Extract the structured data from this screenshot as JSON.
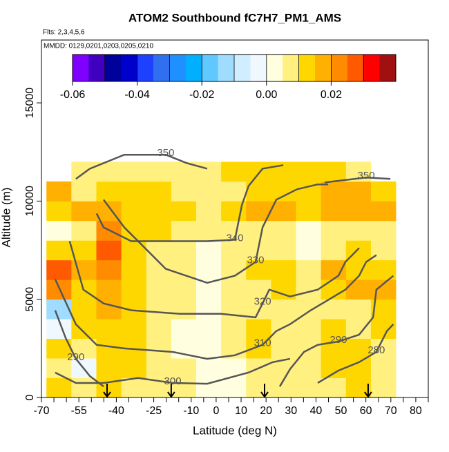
{
  "chart_data": {
    "type": "heatmap",
    "title": "ATOM2 Southbound fC7H7_PM1_AMS",
    "subtitle": "Flts: 2,3,4,5,6",
    "annotation": "MMDD: 0129,0201,0203,0205,0210",
    "xlabel": "Latitude (deg N)",
    "ylabel": "Altitude (m)",
    "xlim": [
      -70,
      85
    ],
    "ylim": [
      0,
      18200
    ],
    "xticks": [
      -70,
      -55,
      -40,
      -25,
      -10,
      0,
      10,
      20,
      30,
      40,
      50,
      60,
      70,
      80
    ],
    "xminorticks": [
      -65,
      -60,
      -50,
      -45,
      -35,
      -30,
      -20,
      -15,
      -5,
      5,
      15,
      25,
      35,
      45,
      55,
      65,
      75,
      85
    ],
    "yticks": [
      0,
      5000,
      10000,
      15000
    ],
    "colorbar": {
      "lim": [
        -0.06,
        0.04
      ],
      "ticks": [
        -0.06,
        -0.04,
        -0.02,
        {
          "value": 0,
          "label": "0.00"
        },
        0.02
      ],
      "colors": [
        "#7f00ff",
        "#4000c0",
        "#00009a",
        "#0000cd",
        "#1e40ff",
        "#3070f0",
        "#1e90ff",
        "#00b0ff",
        "#60c8ff",
        "#a0dcff",
        "#d0eeff",
        "#f0f8ff",
        "#ffffe0",
        "#fff080",
        "#ffd700",
        "#ffb000",
        "#ff8c00",
        "#ff5a00",
        "#ff0000",
        "#a01010"
      ]
    },
    "heatmap": {
      "x_edges": [
        -68,
        -58,
        -48,
        -38,
        -28,
        -18,
        -8,
        2,
        12,
        22,
        32,
        42,
        52,
        62,
        72
      ],
      "y_edges": [
        0,
        1000,
        2000,
        3000,
        4000,
        5000,
        6000,
        7000,
        8000,
        9000,
        10000,
        11000,
        12000
      ],
      "values": [
        [
          0.012,
          0.008,
          0.012,
          0.01,
          0.008,
          0.006,
          0.004,
          0.004,
          0.008,
          0.01,
          0.008,
          0.01,
          0.012,
          0.01
        ],
        [
          0.01,
          -0.005,
          0.012,
          0.012,
          0.008,
          0.005,
          0.002,
          0.004,
          0.01,
          0.006,
          0.008,
          0.012,
          0.014,
          0.01
        ],
        [
          0.012,
          0.01,
          0.014,
          0.012,
          0.008,
          0.004,
          0.002,
          0.006,
          0.012,
          0.01,
          0.01,
          0.014,
          0.012,
          0.01
        ],
        [
          -0.005,
          0.012,
          0.014,
          0.012,
          0.01,
          0.004,
          0.002,
          0.006,
          0.012,
          0.008,
          0.01,
          0.012,
          0.01,
          0.012
        ],
        [
          -0.01,
          0.012,
          0.016,
          0.012,
          0.01,
          0.005,
          0.002,
          0.006,
          0.01,
          0.01,
          0.008,
          0.01,
          0.008,
          0.014
        ],
        [
          0.022,
          0.014,
          0.018,
          0.014,
          0.01,
          0.006,
          0.003,
          0.006,
          0.01,
          0.012,
          0.01,
          0.014,
          0.016,
          0.018
        ],
        [
          0.028,
          0.016,
          0.02,
          0.012,
          0.01,
          0.006,
          0.004,
          0.006,
          0.012,
          0.012,
          0.01,
          0.016,
          0.014,
          0.012
        ],
        [
          0.012,
          0.014,
          0.026,
          0.014,
          0.01,
          0.006,
          0.004,
          0.006,
          0.008,
          0.006,
          0.004,
          0.01,
          0.012,
          0.01
        ],
        [
          0.004,
          0.01,
          0.022,
          0.014,
          0.012,
          0.01,
          0.006,
          0.006,
          0.008,
          0.006,
          0.002,
          0.006,
          0.008,
          0.01
        ],
        [
          0.014,
          0.018,
          0.016,
          0.014,
          0.012,
          0.012,
          0.01,
          0.012,
          0.016,
          0.016,
          0.014,
          0.016,
          0.018,
          0.016
        ],
        [
          0.016,
          0.01,
          0.014,
          0.012,
          0.012,
          0.01,
          0.008,
          0.01,
          0.014,
          0.012,
          0.012,
          0.018,
          0.016,
          0.014
        ],
        [
          null,
          0.008,
          0.01,
          0.01,
          0.008,
          0.01,
          0.01,
          0.012,
          0.012,
          0.012,
          0.014,
          0.012,
          0.01,
          null
        ]
      ]
    },
    "contour_color": "#555555",
    "contours": [
      {
        "level": 280,
        "x": [
          40.7,
          49,
          57.3,
          64.2,
          68.4,
          71
        ],
        "y": [
          740,
          1370,
          1800,
          2320,
          3380,
          3730
        ]
      },
      {
        "level": 290,
        "x": [
          25.5,
          29.6,
          35.2,
          40.7,
          49,
          57.3,
          62.9,
          64.2,
          71
        ],
        "y": [
          560,
          1440,
          2320,
          2680,
          2850,
          3200,
          4080,
          5490,
          6200
        ]
      },
      {
        "level": 290,
        "x": [
          -64.5,
          -60.3,
          -56.2,
          -50.6,
          -45.1
        ],
        "y": [
          4440,
          3030,
          1970,
          1090,
          560
        ]
      },
      {
        "level": 300,
        "x": [
          -64.5,
          -56.2,
          -45.1,
          -31.3,
          -17.4,
          -3.6,
          13,
          22.7,
          29.6
        ],
        "y": [
          1270,
          740,
          740,
          990,
          740,
          700,
          1270,
          1800,
          1970
        ]
      },
      {
        "level": 310,
        "x": [
          -64.5,
          -56.2,
          -47.9,
          -36.8,
          -17.4,
          -3.6,
          7.5,
          18.6,
          24.1,
          29.6,
          37.9,
          51.8,
          57.3,
          60.1,
          64.2
        ],
        "y": [
          6020,
          3730,
          2680,
          2500,
          2320,
          1970,
          2150,
          2680,
          3380,
          3730,
          4440,
          5490,
          6200,
          6900,
          7250
        ]
      },
      {
        "level": 320,
        "x": [
          -58.7,
          -53.2,
          -45.1,
          -34,
          -14.6,
          2,
          15.8,
          18.6,
          21.3,
          29.6,
          40.7,
          49,
          51.8,
          57.3
        ],
        "y": [
          7960,
          5490,
          4790,
          4440,
          4260,
          4260,
          4080,
          4790,
          5490,
          5140,
          5490,
          6200,
          6900,
          7610
        ]
      },
      {
        "level": 330,
        "x": [
          -45.1,
          -36.8,
          -20.2,
          -3.6,
          7.5,
          15.8,
          18.6,
          24.1,
          32.4,
          40.7,
          44.9
        ],
        "y": [
          10070,
          8660,
          6550,
          5840,
          6200,
          6900,
          8660,
          10070,
          10600,
          10850,
          10850
        ]
      },
      {
        "level": 340,
        "x": [
          -47.9,
          -45.1,
          -34,
          -17.4,
          -3.6,
          7.5,
          10.3,
          13,
          18.6,
          26.9
        ],
        "y": [
          9370,
          8660,
          7960,
          7960,
          7960,
          8030,
          9790,
          10770,
          11650,
          11830
        ]
      },
      {
        "level": 350,
        "x": [
          -56.2,
          -50.6,
          -36.8,
          -20.2,
          -11.9,
          -3.6
        ],
        "y": [
          11130,
          11650,
          12360,
          12360,
          11940,
          11650
        ]
      },
      {
        "level": 350,
        "x": [
          43.5,
          60.1,
          69.8
        ],
        "y": [
          10950,
          11200,
          11130
        ]
      }
    ],
    "arrows": [
      -43.7,
      -18,
      19.4,
      60.9
    ]
  }
}
